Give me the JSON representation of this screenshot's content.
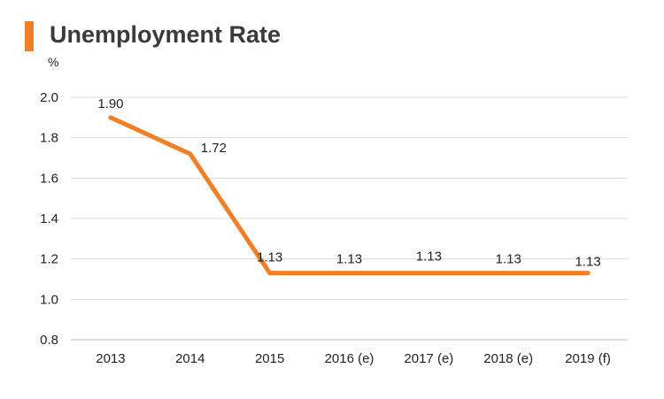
{
  "header": {
    "title": "Unemployment Rate",
    "unit": "%"
  },
  "colors": {
    "accent": "#f07f27",
    "line": "#f07f27",
    "grid": "#d9d9d9"
  },
  "chart_data": {
    "type": "line",
    "title": "Unemployment Rate",
    "ylabel": "%",
    "xlabel": "",
    "categories": [
      "2013",
      "2014",
      "2015",
      "2016 (e)",
      "2017 (e)",
      "2018 (e)",
      "2019 (f)"
    ],
    "series": [
      {
        "values": [
          1.9,
          1.72,
          1.13,
          1.13,
          1.13,
          1.13,
          1.13
        ],
        "labels": [
          "1.90",
          "1.72",
          "1.13",
          "1.13",
          "1.13",
          "1.13",
          "1.13"
        ]
      }
    ],
    "yticks": [
      "0.8",
      "1.0",
      "1.2",
      "1.4",
      "1.6",
      "1.8",
      "2.0"
    ],
    "ylim": [
      0.8,
      2.0
    ],
    "grid": true,
    "legend": "none"
  }
}
